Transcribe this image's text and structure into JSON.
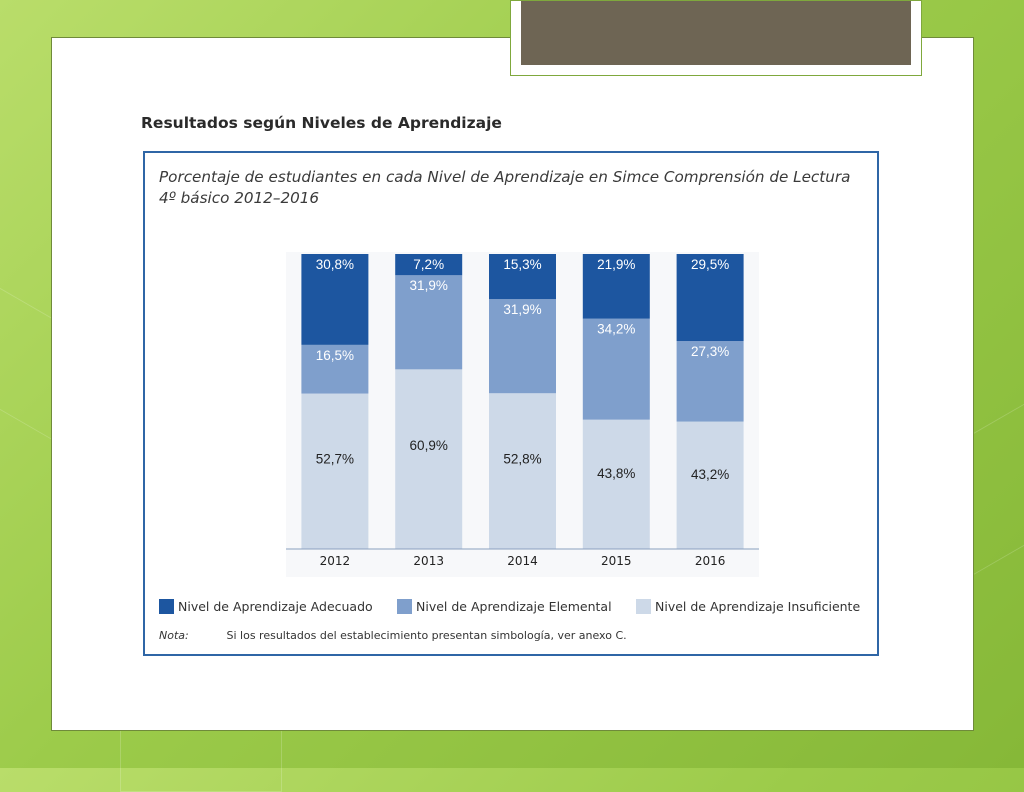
{
  "slide": {
    "heading": "Resultados según Niveles de Aprendizaje"
  },
  "chart_data": {
    "type": "bar",
    "stacked": true,
    "title_line1": "Porcentaje de estudiantes en cada Nivel de Aprendizaje en Simce Comprensión de Lectura",
    "title_line2": "4º básico 2012–2016",
    "categories": [
      "2012",
      "2013",
      "2014",
      "2015",
      "2016"
    ],
    "series": [
      {
        "name": "Nivel de Aprendizaje Insuficiente",
        "values": [
          52.7,
          60.9,
          52.8,
          43.8,
          43.2
        ],
        "labels": [
          "52,7%",
          "60,9%",
          "52,8%",
          "43,8%",
          "43,2%"
        ],
        "color": "#cdd9e8",
        "text_color": "#222222"
      },
      {
        "name": "Nivel de Aprendizaje Elemental",
        "values": [
          16.5,
          31.9,
          31.9,
          34.2,
          27.3
        ],
        "labels": [
          "16,5%",
          "31,9%",
          "31,9%",
          "34,2%",
          "27,3%"
        ],
        "color": "#7f9fcc",
        "text_color": "#ffffff"
      },
      {
        "name": "Nivel de Aprendizaje Adecuado",
        "values": [
          30.8,
          7.2,
          15.3,
          21.9,
          29.5
        ],
        "labels": [
          "30,8%",
          "7,2%",
          "15,3%",
          "21,9%",
          "29,5%"
        ],
        "color": "#1d56a0",
        "text_color": "#ffffff"
      }
    ],
    "legend_order": [
      "Nivel de Aprendizaje Adecuado",
      "Nivel de Aprendizaje Elemental",
      "Nivel de Aprendizaje Insuficiente"
    ],
    "ylim": [
      0,
      100
    ],
    "grid": false,
    "legend_position": "bottom",
    "note_label": "Nota:",
    "note_text": "Si los resultados del establecimiento presentan simbología, ver anexo C."
  }
}
